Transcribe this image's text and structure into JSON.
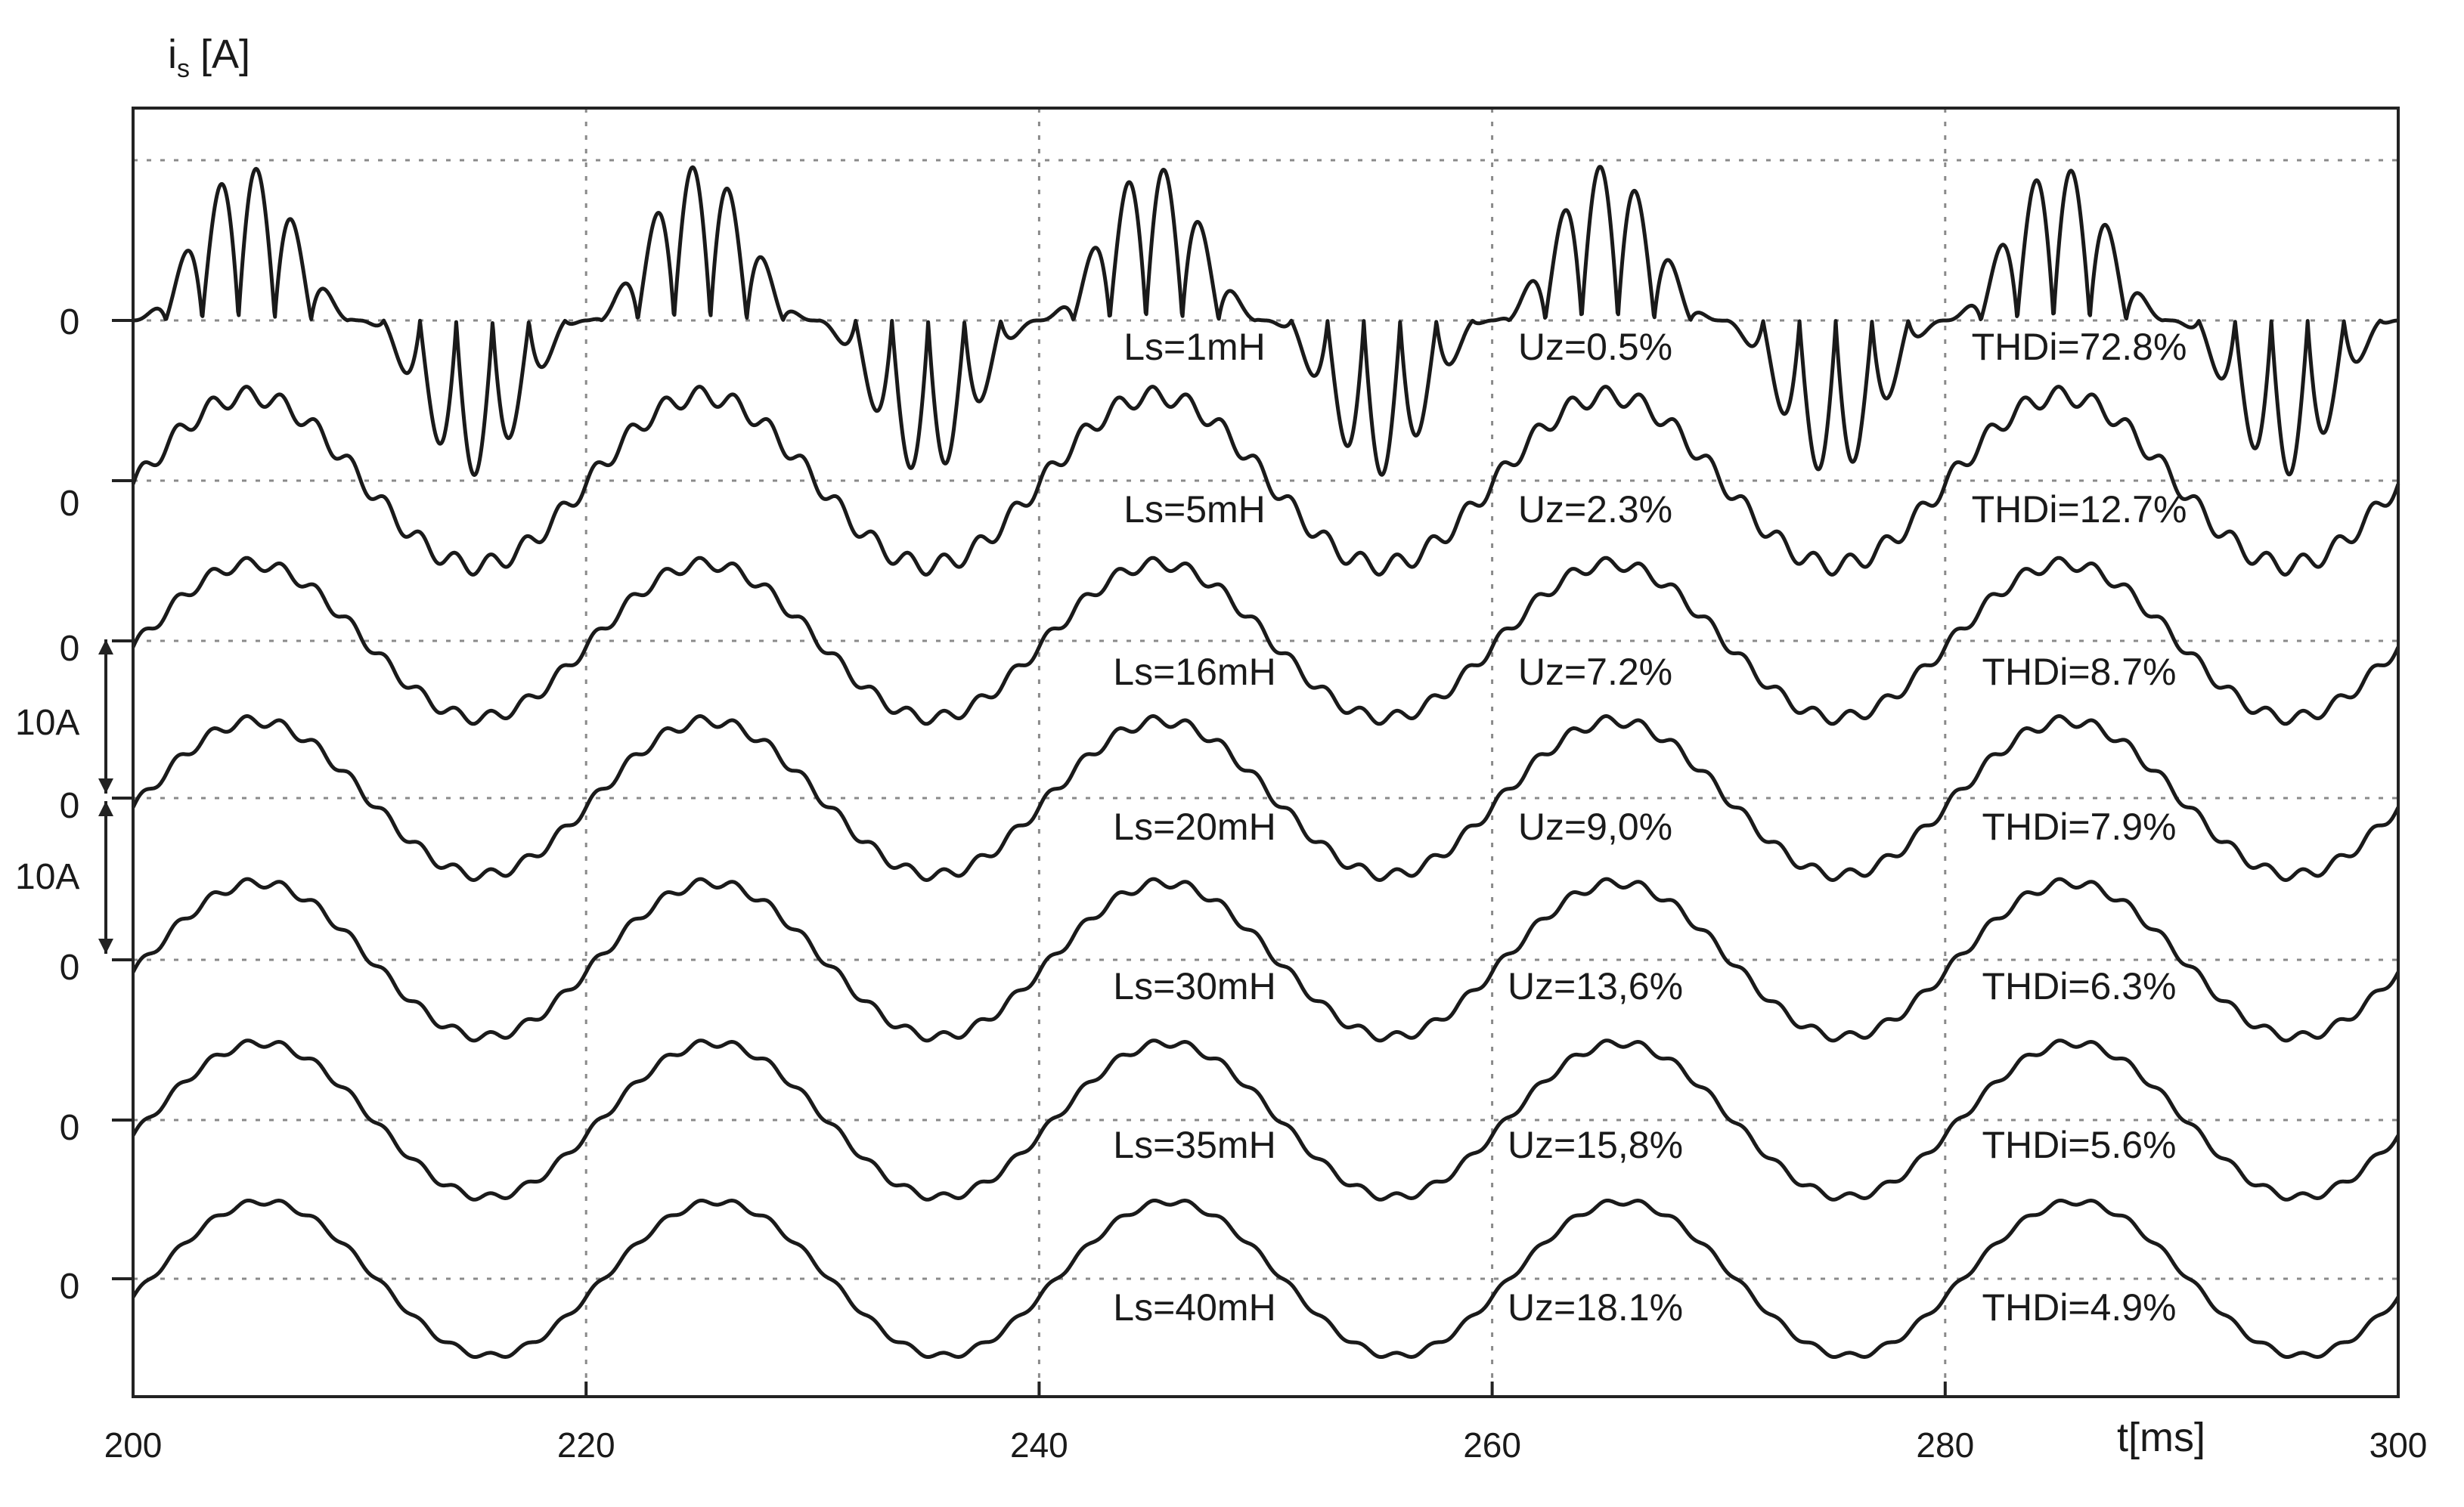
{
  "chart_data": {
    "type": "line",
    "ylabel": "i",
    "ylabel_sub": "s",
    "ylabel_unit": "[A]",
    "xlabel": "t[ms]",
    "xlim": [
      200,
      300
    ],
    "xticks": [
      "200",
      "220",
      "240",
      "260",
      "280",
      "300"
    ],
    "grid": true,
    "zero_label": "0",
    "scale_labels": [
      "10A",
      "10A"
    ],
    "scale_amps": 10,
    "fundamental_period_ms": 20,
    "series": [
      {
        "ls": "Ls=1mH",
        "uz": "Uz=0.5%",
        "thd": "THDi=72.8%",
        "amplitude_a": 10,
        "ripple_a": 8.5,
        "ripple_harmonic": 13
      },
      {
        "ls": "Ls=5mH",
        "uz": "Uz=2.3%",
        "thd": "THDi=12.7%",
        "amplitude_a": 5.5,
        "ripple_a": 0.6,
        "ripple_harmonic": 13
      },
      {
        "ls": "Ls=16mH",
        "uz": "Uz=7.2%",
        "thd": "THDi=8.7%",
        "amplitude_a": 5,
        "ripple_a": 0.4,
        "ripple_harmonic": 13
      },
      {
        "ls": "Ls=20mH",
        "uz": "Uz=9,0%",
        "thd": "THDi=7.9%",
        "amplitude_a": 5,
        "ripple_a": 0.35,
        "ripple_harmonic": 13
      },
      {
        "ls": "Ls=30mH",
        "uz": "Uz=13,6%",
        "thd": "THDi=6.3%",
        "amplitude_a": 5,
        "ripple_a": 0.3,
        "ripple_harmonic": 13
      },
      {
        "ls": "Ls=35mH",
        "uz": "Uz=15,8%",
        "thd": "THDi=5.6%",
        "amplitude_a": 5,
        "ripple_a": 0.25,
        "ripple_harmonic": 13
      },
      {
        "ls": "Ls=40mH",
        "uz": "Uz=18.1%",
        "thd": "THDi=4.9%",
        "amplitude_a": 5,
        "ripple_a": 0.2,
        "ripple_harmonic": 13
      }
    ]
  }
}
